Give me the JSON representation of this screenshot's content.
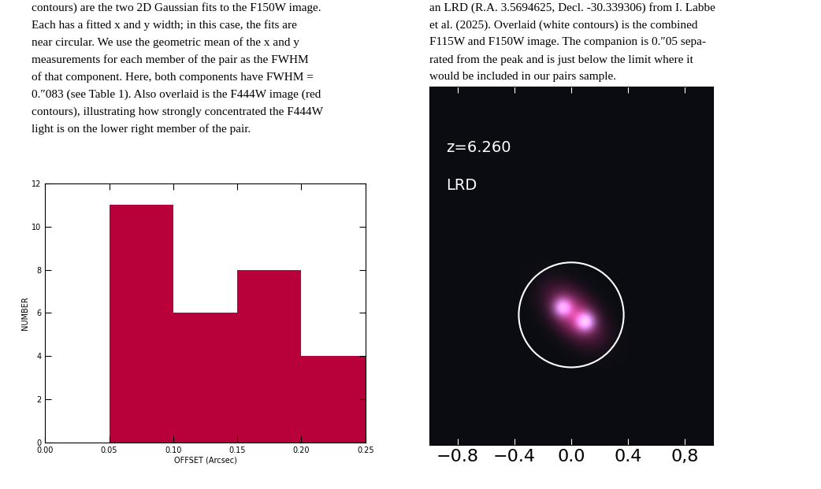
{
  "text_left": [
    "contours) are the two 2D Gaussian fits to the F150W image.",
    "Each has a fitted x and y width; in this case, the fits are",
    "near circular. We use the geometric mean of the x and y",
    "measurements for each member of the pair as the FWHM",
    "of that component. Here, both components have FWHM =",
    "0.″083 (see Table 1). Also overlaid is the F444W image (red",
    "contours), illustrating how strongly concentrated the F444W",
    "light is on the lower right member of the pair."
  ],
  "text_right": [
    "an LRD (R.A. 3.5694625, Decl. -30.339306) from I. Labbe",
    "et al. (2025). Overlaid (white contours) is the combined",
    "F115W and F150W image. The companion is 0.″05 sepa-",
    "rated from the peak and is just below the limit where it",
    "would be included in our pairs sample."
  ],
  "chart_data": {
    "type": "histogram",
    "bins": [
      0.0,
      0.05,
      0.1,
      0.15,
      0.2,
      0.25
    ],
    "counts": [
      0,
      11,
      6,
      8,
      4
    ],
    "color": "#b8003a",
    "x_label": "OFFSET (Arcsec)",
    "y_label": "NUMBER",
    "xlim": [
      0.0,
      0.25
    ],
    "xticks": [
      {
        "value": 0.0,
        "label": "0.00"
      },
      {
        "value": 0.05,
        "label": "0.05"
      },
      {
        "value": 0.1,
        "label": "0.10"
      },
      {
        "value": 0.15,
        "label": "0.15"
      },
      {
        "value": 0.2,
        "label": "0.20"
      },
      {
        "value": 0.25,
        "label": "0.25"
      }
    ],
    "ylim": [
      0,
      12
    ],
    "yticks": [
      0,
      2,
      4,
      6,
      8,
      10,
      12
    ]
  },
  "image": {
    "labels": [
      "z=6.260",
      "LRD"
    ],
    "xlim": [
      -1.0,
      1.0
    ],
    "xticks": [
      {
        "value": -0.8,
        "label": "−0.8"
      },
      {
        "value": -0.4,
        "label": "−0.4"
      },
      {
        "value": 0.0,
        "label": "0.0"
      },
      {
        "value": 0.4,
        "label": "0.4"
      },
      {
        "value": 0.8,
        "label": "0,8"
      }
    ],
    "tick_labels": "x"
  }
}
